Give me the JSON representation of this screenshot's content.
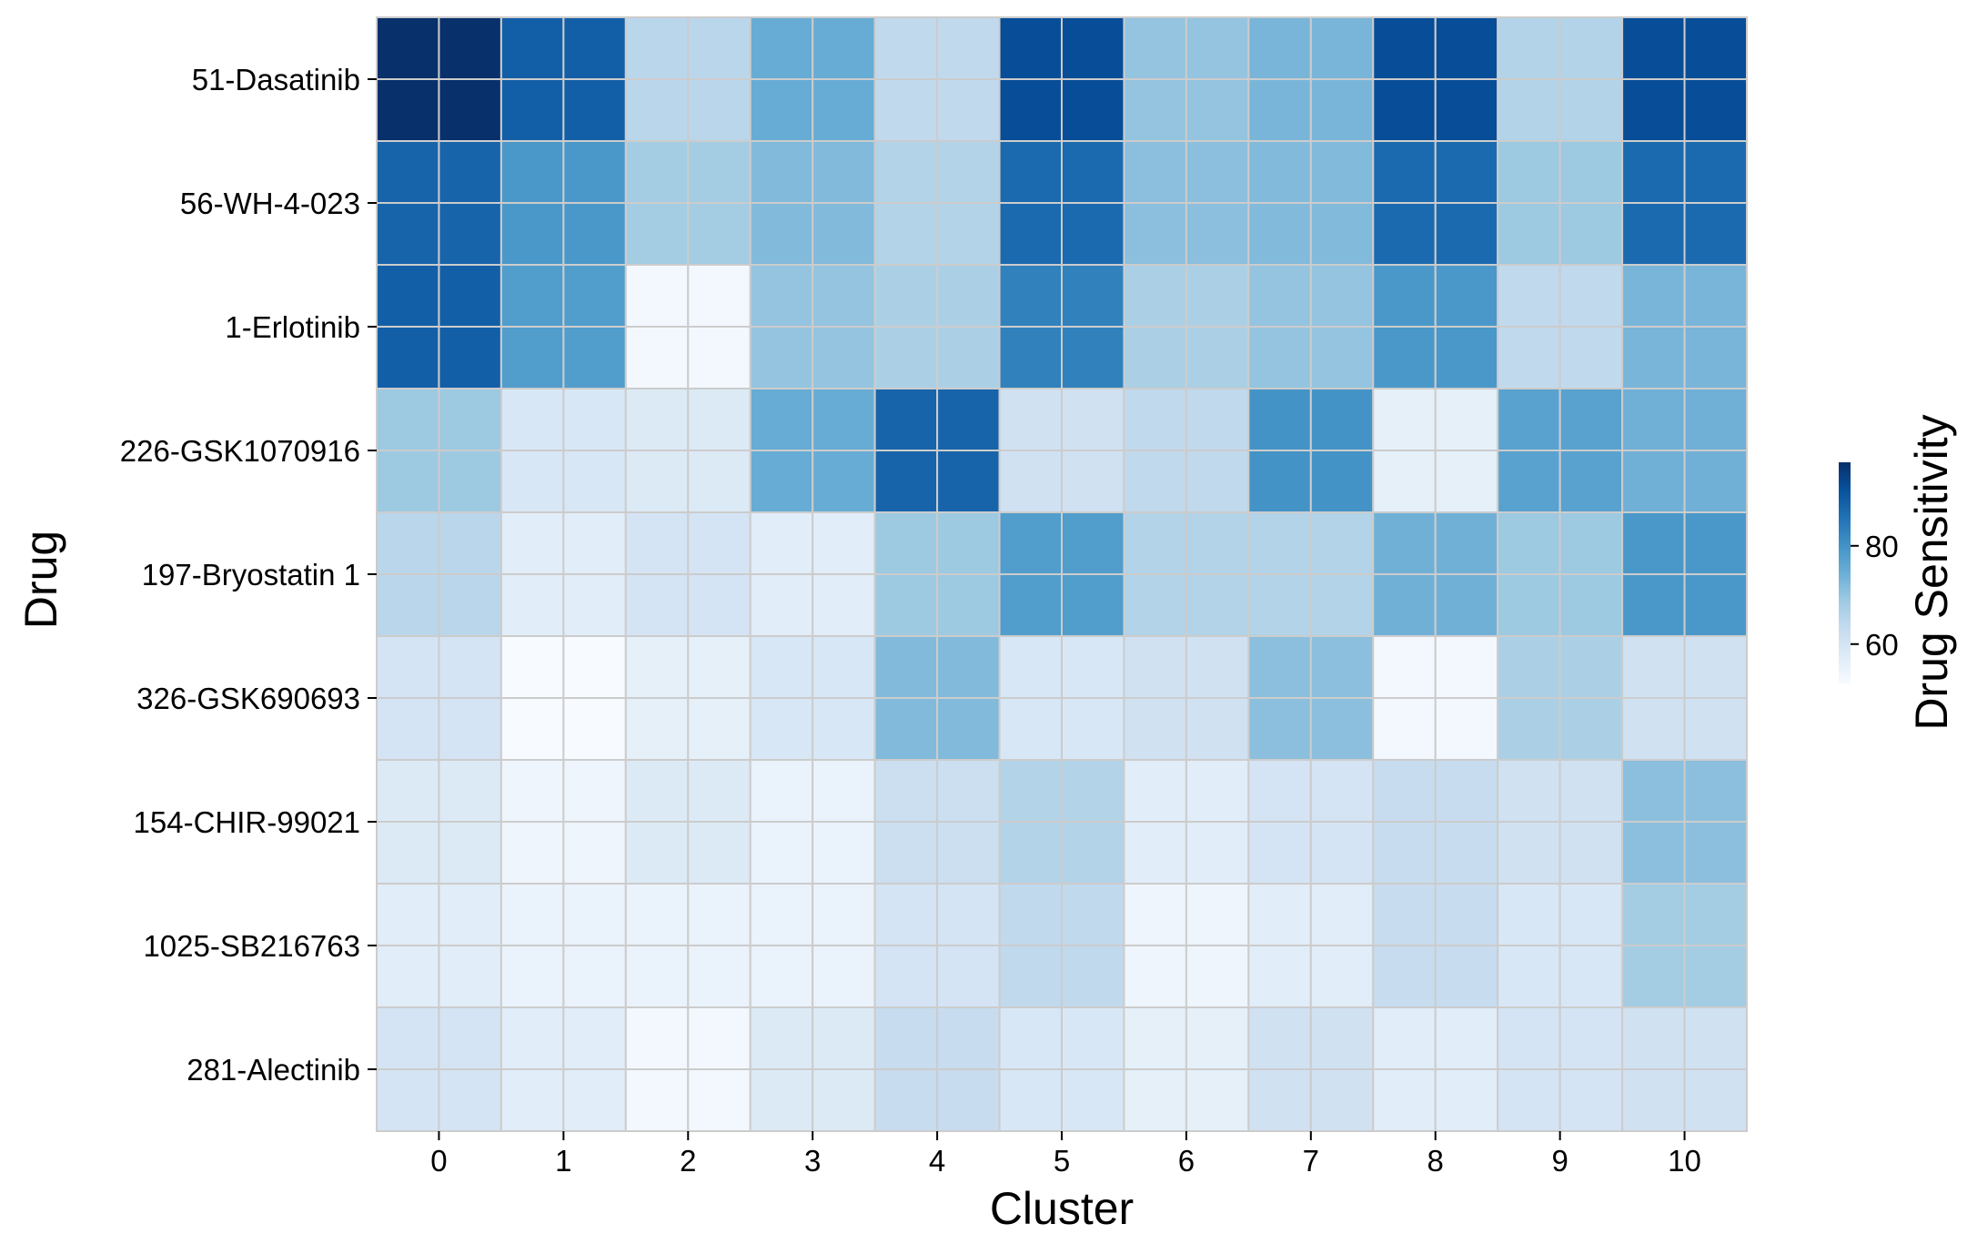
{
  "chart_data": {
    "type": "heatmap",
    "title": "",
    "xlabel": "Cluster",
    "ylabel": "Drug",
    "x_categories": [
      "0",
      "1",
      "2",
      "3",
      "4",
      "5",
      "6",
      "7",
      "8",
      "9",
      "10"
    ],
    "y_categories": [
      "51-Dasatinib",
      "56-WH-4-023",
      "1-Erlotinib",
      "226-GSK1070916",
      "197-Bryostatin 1",
      "326-GSK690693",
      "154-CHIR-99021",
      "1025-SB216763",
      "281-Alectinib"
    ],
    "values": [
      [
        97,
        89,
        65,
        75,
        64,
        92,
        70,
        73,
        92,
        66,
        92
      ],
      [
        88,
        79,
        68,
        72,
        66,
        87,
        71,
        72,
        87,
        69,
        87
      ],
      [
        89,
        78,
        53,
        70,
        67,
        83,
        67,
        70,
        79,
        64,
        73
      ],
      [
        69,
        59,
        58,
        75,
        88,
        61,
        64,
        80,
        56,
        77,
        74
      ],
      [
        65,
        57,
        60,
        57,
        69,
        78,
        66,
        66,
        74,
        69,
        79
      ],
      [
        60,
        52,
        56,
        59,
        72,
        59,
        61,
        71,
        53,
        67,
        61
      ],
      [
        58,
        54,
        58,
        55,
        62,
        66,
        57,
        60,
        63,
        61,
        71
      ],
      [
        57,
        55,
        55,
        55,
        60,
        64,
        54,
        57,
        63,
        59,
        68
      ],
      [
        60,
        57,
        53,
        58,
        63,
        59,
        56,
        61,
        57,
        60,
        61
      ]
    ],
    "sub_rows": 2,
    "sub_cols": 2,
    "colormap": "Blues",
    "vmin": 52,
    "vmax": 97,
    "grid_color": "#cccccc",
    "colorbar": {
      "label": "Drug Sensitivity",
      "ticks": [
        60,
        80
      ],
      "position": "right"
    }
  }
}
